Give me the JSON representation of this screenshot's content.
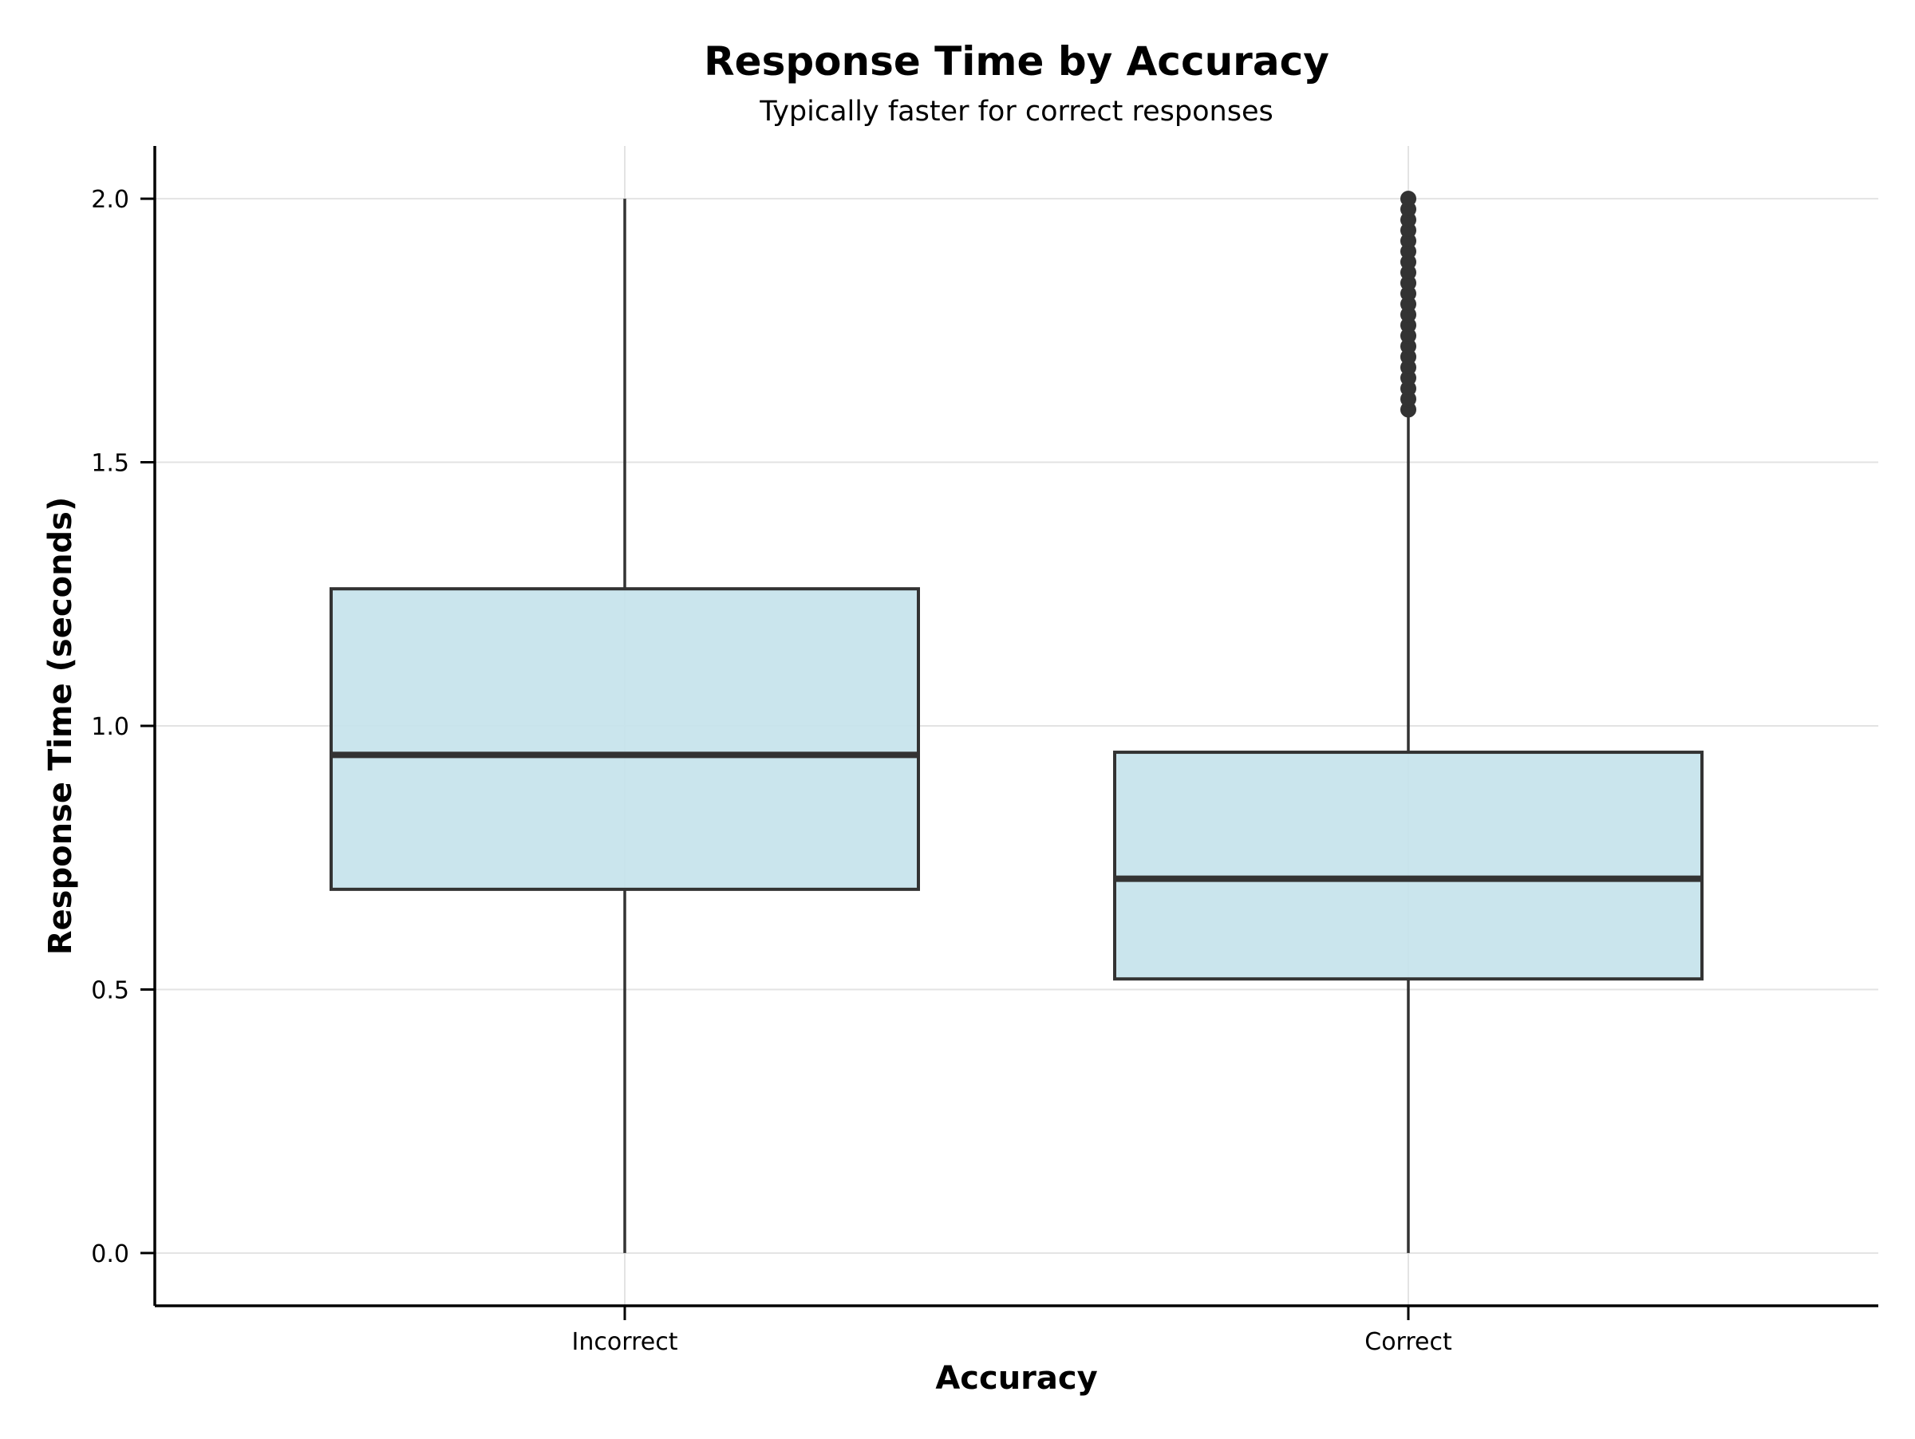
{
  "chart_data": {
    "type": "box",
    "title": "Response Time by Accuracy",
    "subtitle": "Typically faster for correct responses",
    "xlabel": "Accuracy",
    "ylabel": "Response Time (seconds)",
    "ylim": [
      -0.1,
      2.1
    ],
    "yticks": [
      "0.0",
      "0.5",
      "1.0",
      "1.5",
      "2.0"
    ],
    "grid": true,
    "legend": "none",
    "categories": [
      "Incorrect",
      "Correct"
    ],
    "boxes": [
      {
        "category": "Incorrect",
        "whisker_low": 0.0,
        "q1": 0.69,
        "median": 0.945,
        "q3": 1.26,
        "whisker_high": 2.0,
        "outliers": []
      },
      {
        "category": "Correct",
        "whisker_low": 0.0,
        "q1": 0.52,
        "median": 0.71,
        "q3": 0.95,
        "whisker_high": 1.6,
        "outliers": [
          1.6,
          1.62,
          1.64,
          1.66,
          1.68,
          1.7,
          1.72,
          1.74,
          1.76,
          1.78,
          1.8,
          1.82,
          1.84,
          1.86,
          1.88,
          1.9,
          1.92,
          1.94,
          1.96,
          1.98,
          2.0
        ]
      }
    ],
    "colors": {
      "box_fill": "#c5e3ec",
      "box_edge": "#333333",
      "grid": "#e3e3e3",
      "axis": "#000000"
    }
  }
}
